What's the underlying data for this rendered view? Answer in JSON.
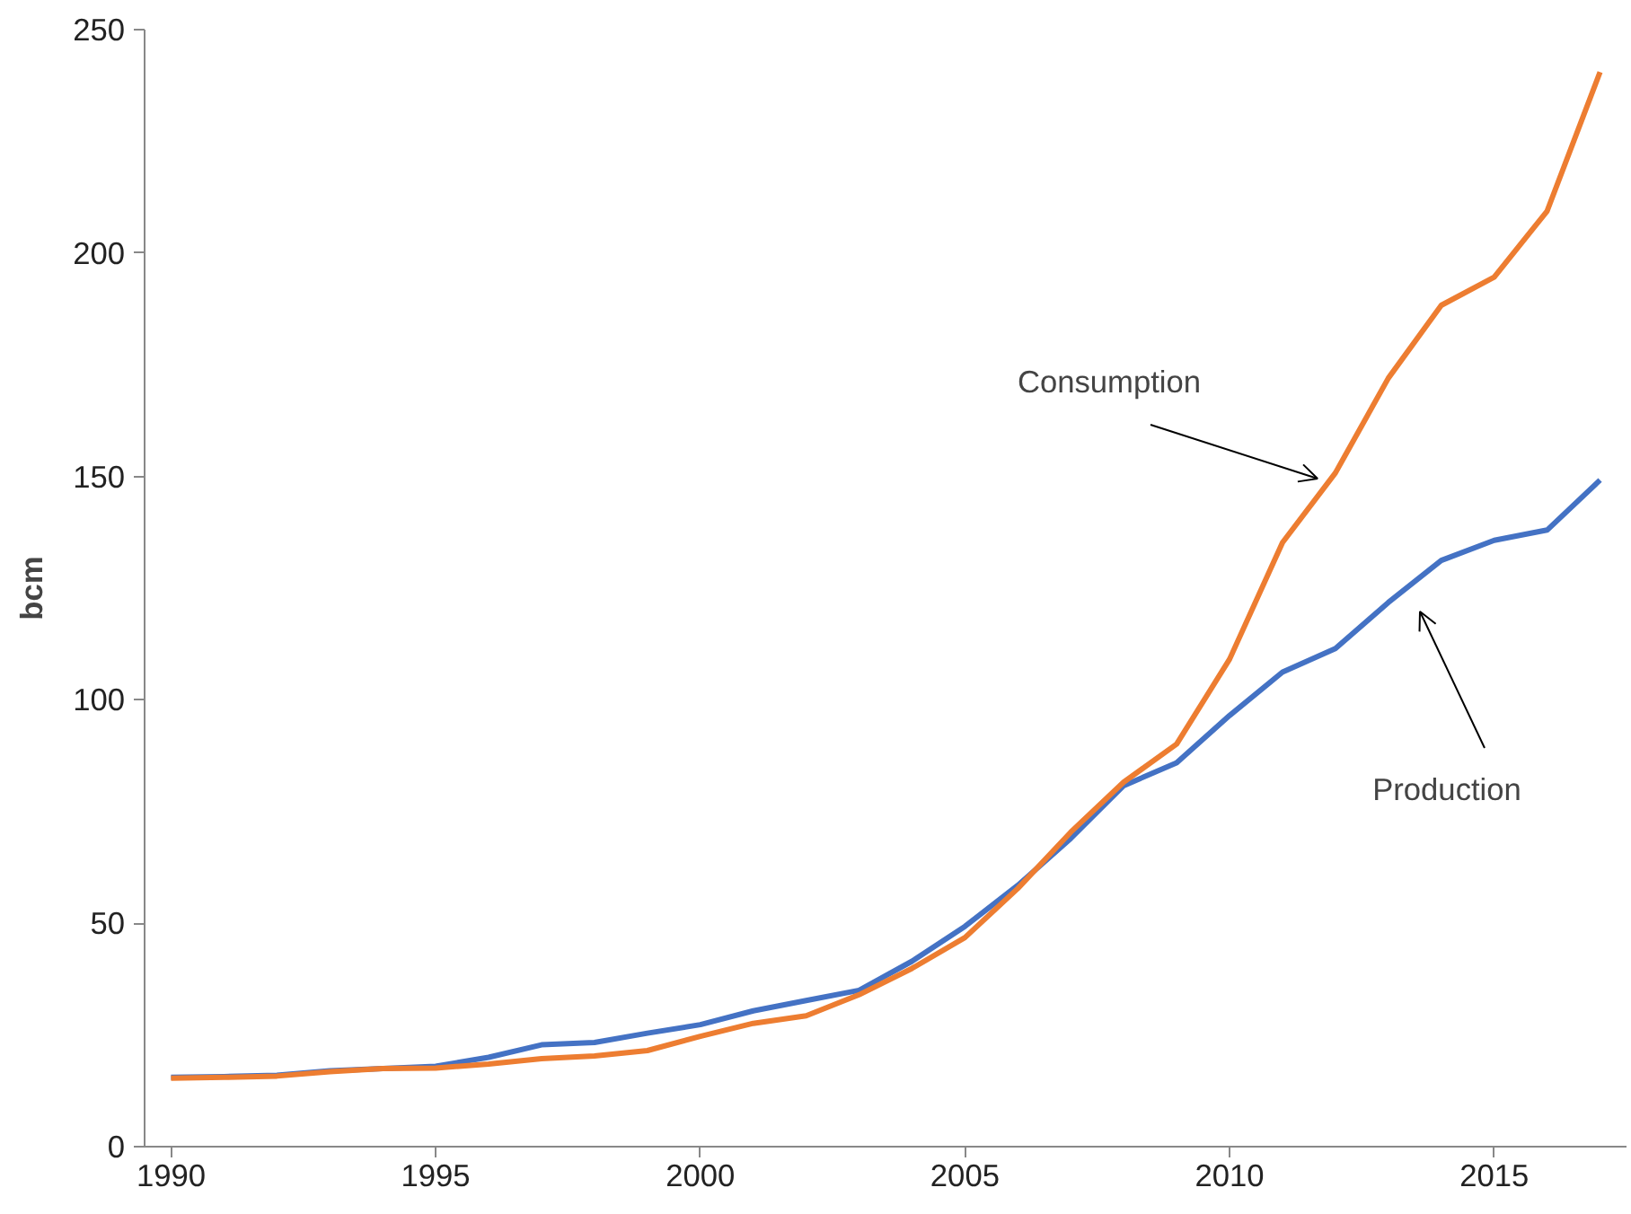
{
  "chart_data": {
    "type": "line",
    "ylabel": "bcm",
    "x": [
      1990,
      1991,
      1992,
      1993,
      1994,
      1995,
      1996,
      1997,
      1998,
      1999,
      2000,
      2001,
      2002,
      2003,
      2004,
      2005,
      2006,
      2007,
      2008,
      2009,
      2010,
      2011,
      2012,
      2013,
      2014,
      2015,
      2016,
      2017
    ],
    "series": [
      {
        "color": "#4472c4",
        "values": [
          15.5,
          15.7,
          16,
          17,
          17.5,
          18,
          20,
          22.8,
          23.3,
          25.4,
          27.3,
          30.4,
          32.7,
          35,
          41.5,
          49.3,
          58.5,
          69,
          80.8,
          85.9,
          96.5,
          106.2,
          111.5,
          121.8,
          131.2,
          135.7,
          138,
          149.2
        ]
      },
      {
        "color": "#ed7d31",
        "values": [
          15.3,
          15.5,
          15.8,
          16.8,
          17.5,
          17.6,
          18.5,
          19.7,
          20.3,
          21.5,
          24.7,
          27.6,
          29.3,
          34,
          39.9,
          46.8,
          57.8,
          70.4,
          81.6,
          90.1,
          109.1,
          135.2,
          150.8,
          172,
          188.3,
          194.6,
          209.4,
          240.5
        ]
      }
    ],
    "annotations": [
      "Consumption",
      "Production"
    ],
    "xlim": [
      1989.5,
      2017.5
    ],
    "ylim": [
      0,
      250
    ],
    "xticks": [
      1990,
      1995,
      2000,
      2005,
      2010,
      2015
    ],
    "yticks": [
      0,
      50,
      100,
      150,
      200,
      250
    ],
    "grid": false,
    "marker": "none",
    "line_style": "solid"
  }
}
